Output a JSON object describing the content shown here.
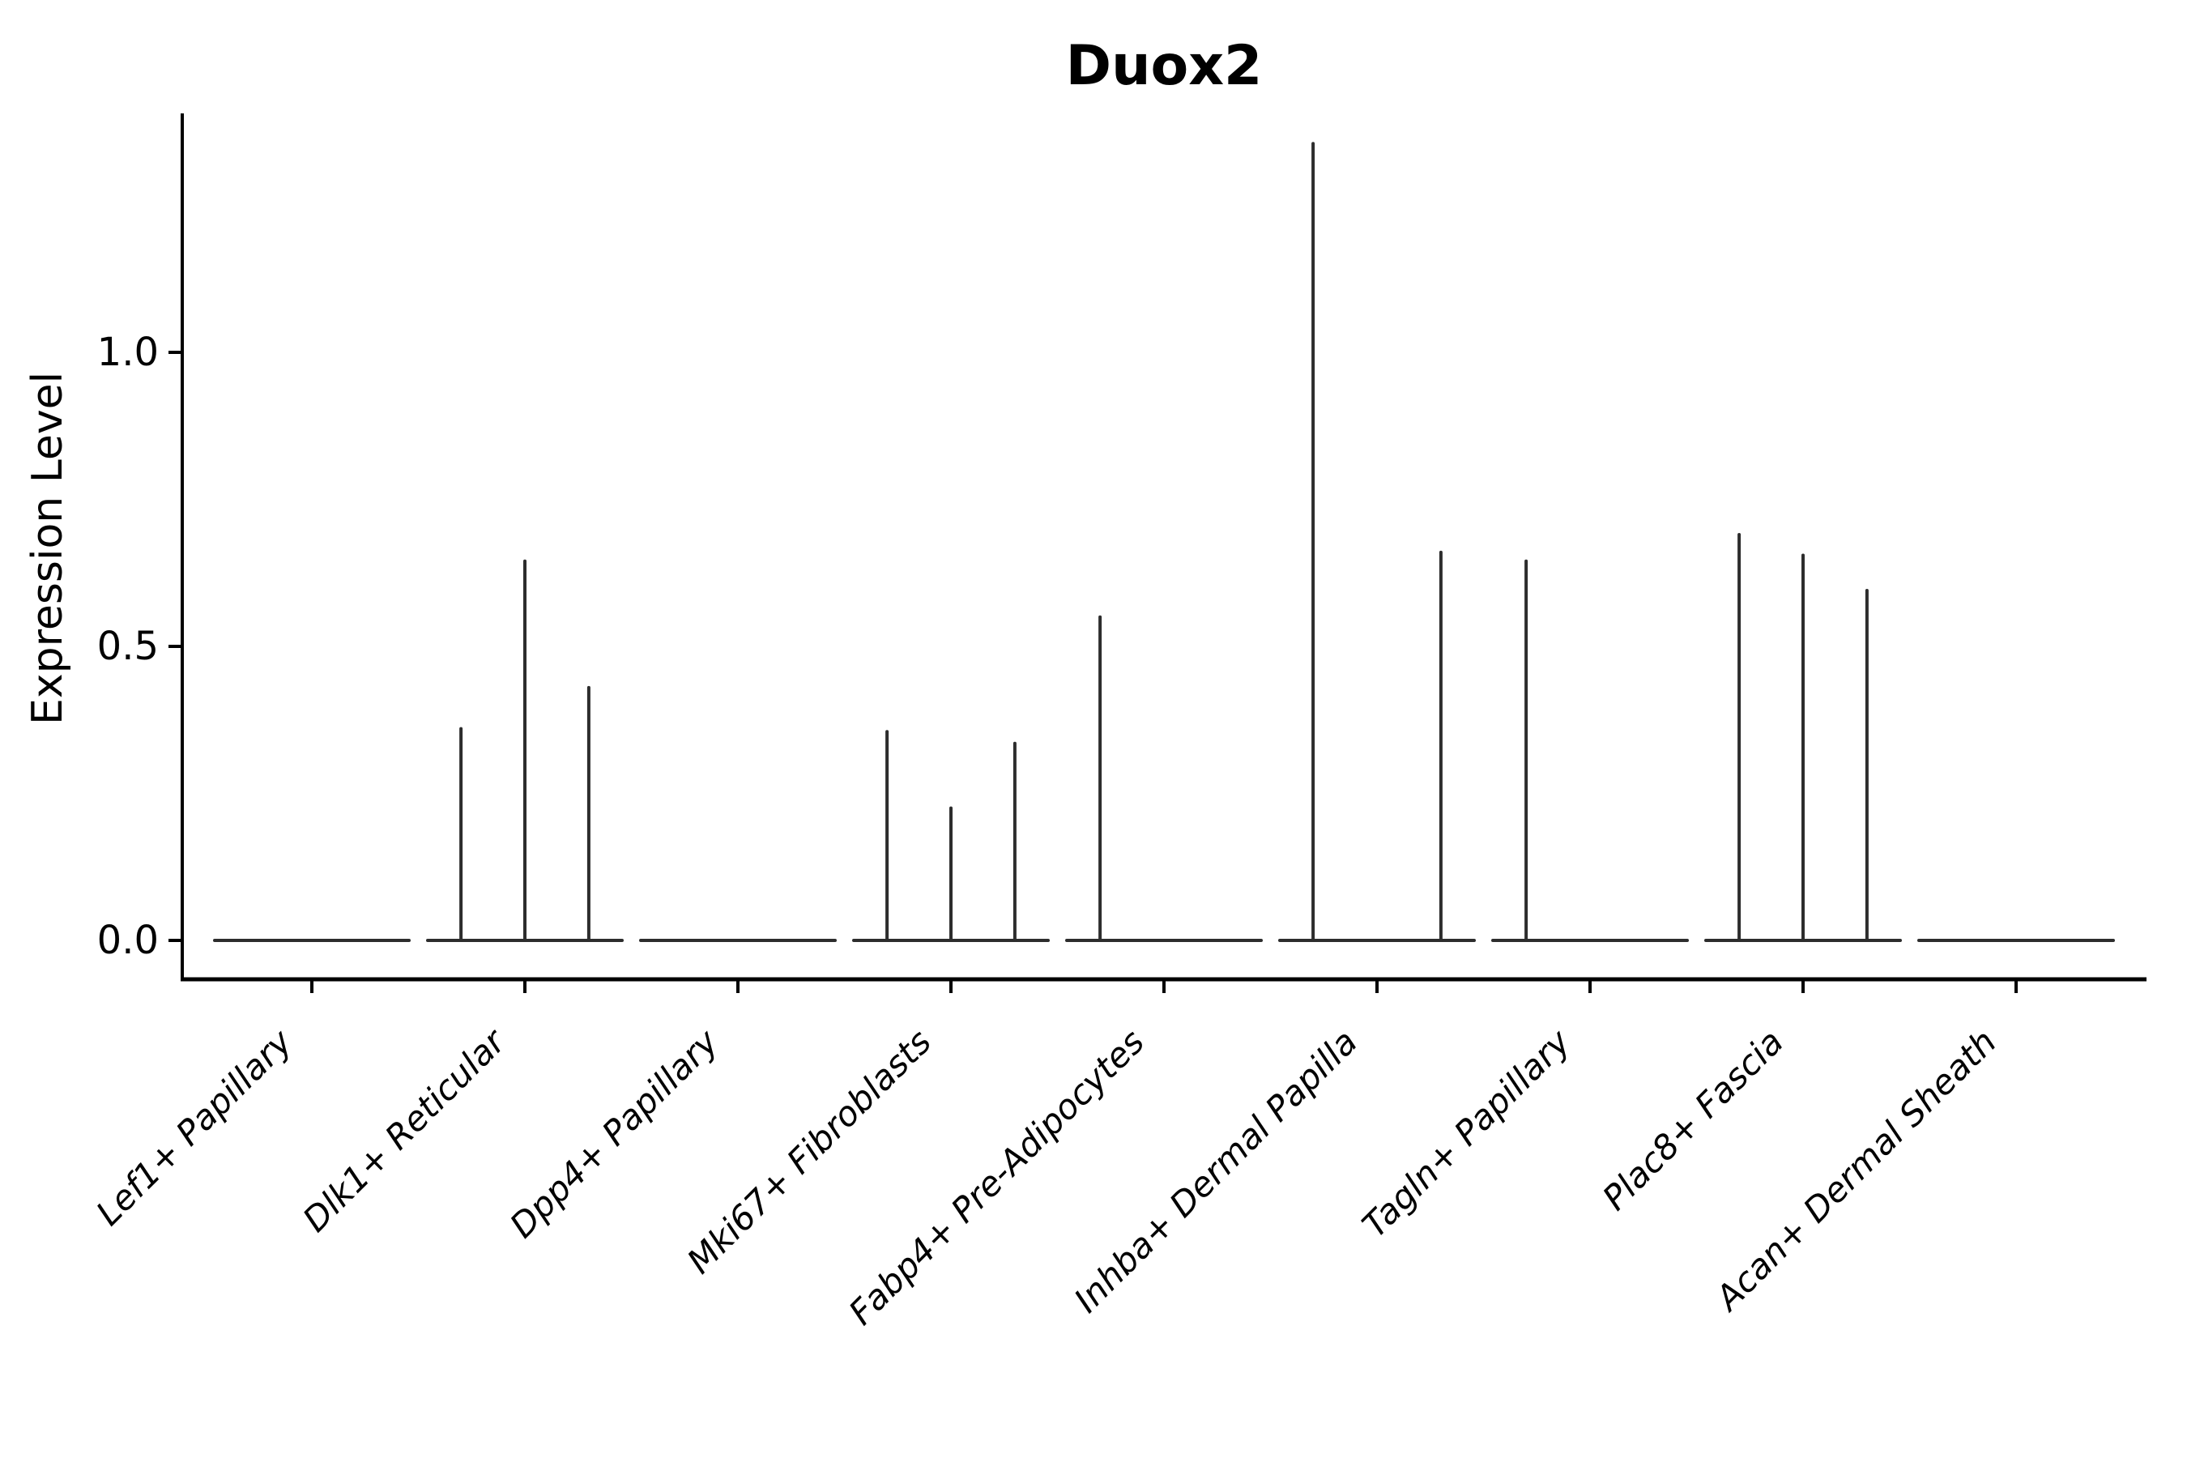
{
  "chart_data": {
    "type": "violin",
    "title": "Duox2",
    "xlabel": "",
    "ylabel": "Expression Level",
    "grid": false,
    "legend": false,
    "yticks": [
      "0.0",
      "0.5",
      "1.0"
    ],
    "ytick_values": [
      0.0,
      0.5,
      1.0
    ],
    "ylim": [
      -0.07,
      1.41
    ],
    "categories": [
      "Lef1+ Papillary",
      "Dlk1+ Reticular",
      "Dpp4+ Papillary",
      "Mki67+ Fibroblasts",
      "Fabp4+ Pre-Adipocytes",
      "Inhba+ Dermal Papilla",
      "Tagln+ Papillary",
      "Plac8+ Fascia",
      "Acan+ Dermal Sheath"
    ],
    "violins": [
      {
        "category": "Lef1+ Papillary",
        "baseline_value": 0.0,
        "spikes": []
      },
      {
        "category": "Dlk1+ Reticular",
        "baseline_value": 0.0,
        "spikes": [
          {
            "offset": -0.3,
            "max": 0.36
          },
          {
            "offset": 0.0,
            "max": 0.645
          },
          {
            "offset": 0.3,
            "max": 0.43
          }
        ]
      },
      {
        "category": "Dpp4+ Papillary",
        "baseline_value": 0.0,
        "spikes": []
      },
      {
        "category": "Mki67+ Fibroblasts",
        "baseline_value": 0.0,
        "spikes": [
          {
            "offset": -0.3,
            "max": 0.355
          },
          {
            "offset": 0.0,
            "max": 0.225
          },
          {
            "offset": 0.3,
            "max": 0.335
          }
        ]
      },
      {
        "category": "Fabp4+ Pre-Adipocytes",
        "baseline_value": 0.0,
        "spikes": [
          {
            "offset": -0.3,
            "max": 0.55
          }
        ]
      },
      {
        "category": "Inhba+ Dermal Papilla",
        "baseline_value": 0.0,
        "spikes": [
          {
            "offset": -0.3,
            "max": 1.355
          },
          {
            "offset": 0.3,
            "max": 0.66
          }
        ]
      },
      {
        "category": "Tagln+ Papillary",
        "baseline_value": 0.0,
        "spikes": [
          {
            "offset": -0.3,
            "max": 0.645
          }
        ]
      },
      {
        "category": "Plac8+ Fascia",
        "baseline_value": 0.0,
        "spikes": [
          {
            "offset": -0.3,
            "max": 0.69
          },
          {
            "offset": 0.0,
            "max": 0.655
          },
          {
            "offset": 0.3,
            "max": 0.595
          }
        ]
      },
      {
        "category": "Acan+ Dermal Sheath",
        "baseline_value": 0.0,
        "spikes": []
      }
    ],
    "colors": {
      "violin_stroke": "#2d2d2d",
      "axis": "#000000",
      "text": "#000000",
      "background": "#ffffff"
    }
  }
}
